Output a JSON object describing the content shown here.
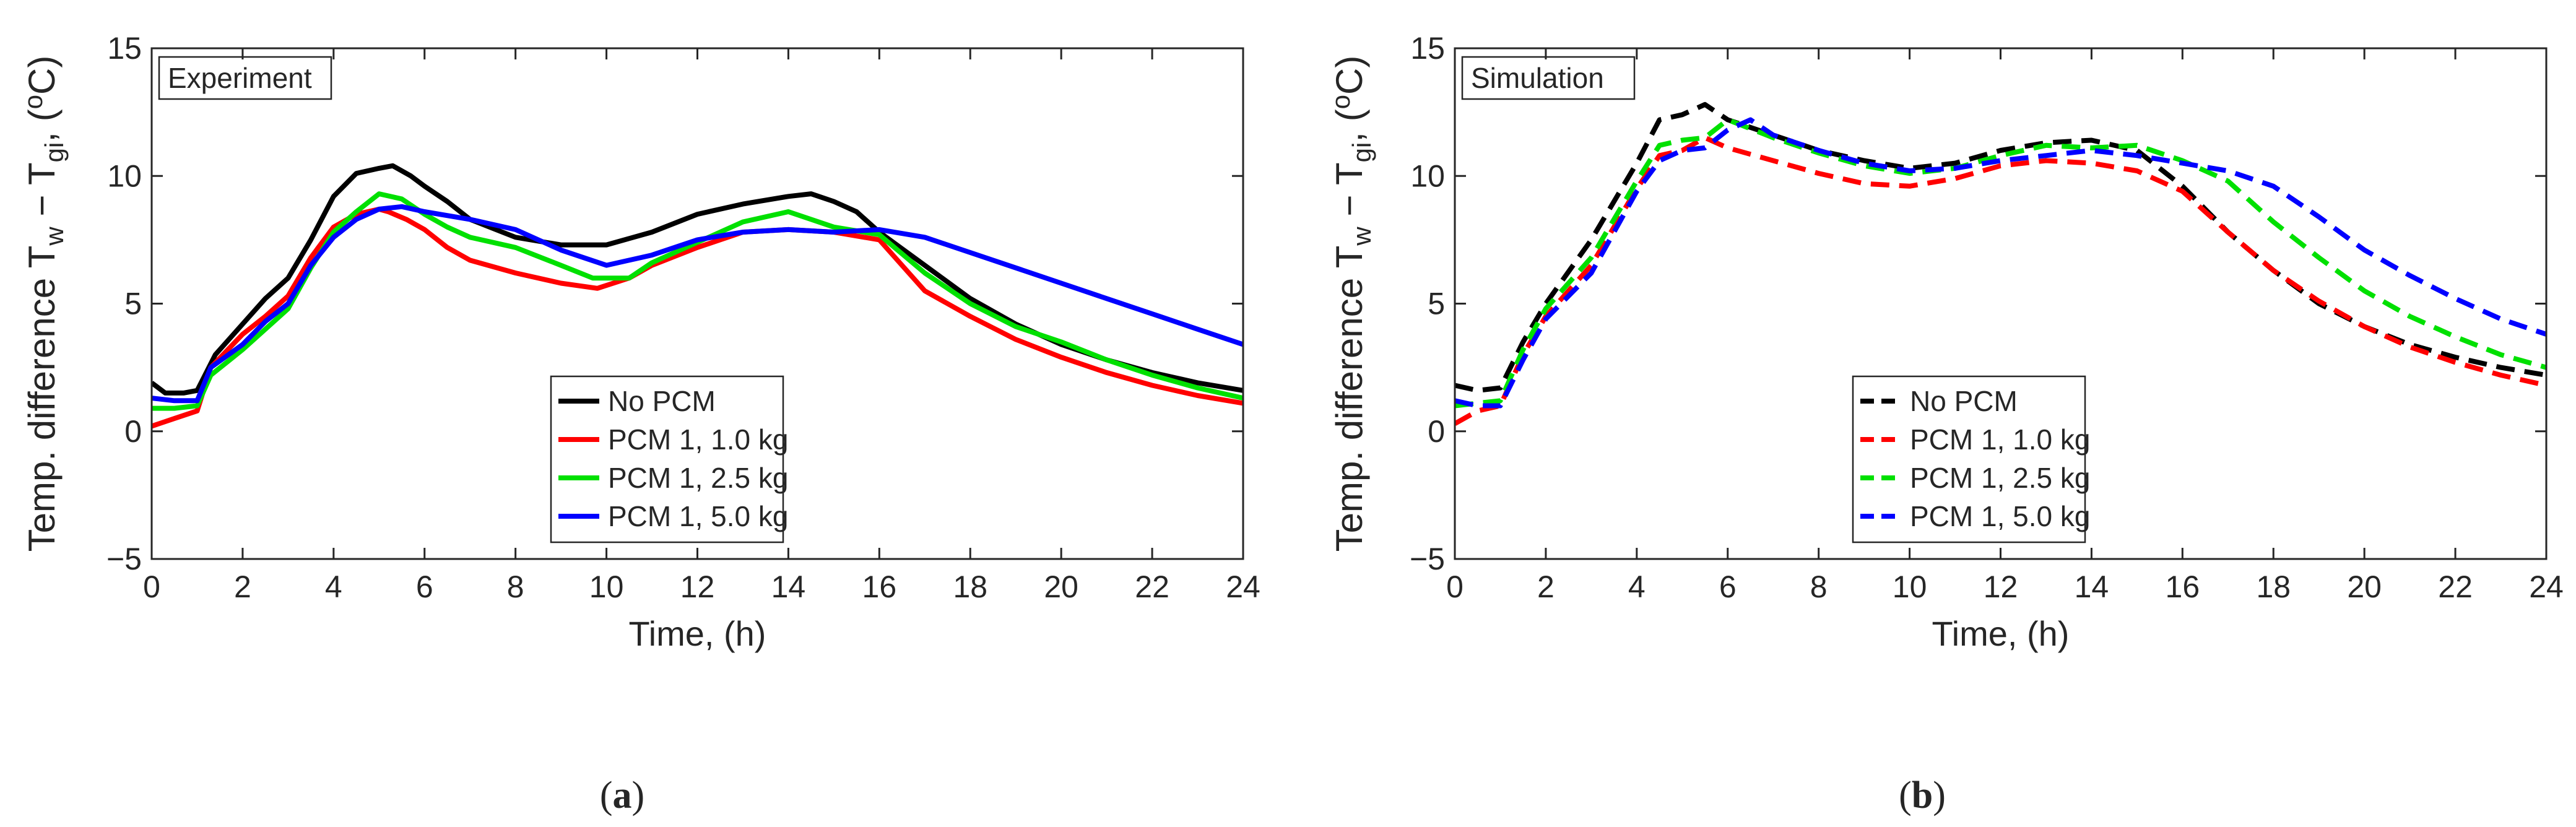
{
  "figure": {
    "panels": [
      {
        "label_open": "(",
        "label_letter": "a",
        "label_close": ")"
      },
      {
        "label_open": "(",
        "label_letter": "b",
        "label_close": ")"
      }
    ]
  },
  "chart_data": [
    {
      "type": "line",
      "title": "",
      "box_label": "Experiment",
      "xlabel": "Time, (h)",
      "ylabel_parts": {
        "main": "Temp. difference T",
        "sub1": "w",
        "minus": " − T",
        "sub2": "gi",
        "comma": ", (",
        "deg": "o",
        "unit": "C)"
      },
      "xlim": [
        0,
        24
      ],
      "ylim": [
        -5,
        15
      ],
      "xticks": [
        0,
        2,
        4,
        6,
        8,
        10,
        12,
        14,
        16,
        18,
        20,
        22,
        24
      ],
      "yticks": [
        -5,
        0,
        5,
        10,
        15
      ],
      "ytick_labels": [
        "−5",
        "0",
        "5",
        "10",
        "15"
      ],
      "grid": false,
      "legend_position": "lower-center",
      "line_style": "solid",
      "series": [
        {
          "name": "No PCM",
          "color": "#000000",
          "x": [
            0,
            0.3,
            0.7,
            1.0,
            1.4,
            2.0,
            2.5,
            3.0,
            3.5,
            4.0,
            4.5,
            5.0,
            5.3,
            5.7,
            6.0,
            6.5,
            7.0,
            8.0,
            9.0,
            10.0,
            11.0,
            12.0,
            13.0,
            14.0,
            14.5,
            15.0,
            15.5,
            16.0,
            17.0,
            18.0,
            19.0,
            20.0,
            21.0,
            22.0,
            23.0,
            24.0
          ],
          "y": [
            1.9,
            1.5,
            1.5,
            1.6,
            3.0,
            4.2,
            5.2,
            6.0,
            7.5,
            9.2,
            10.1,
            10.3,
            10.4,
            10.0,
            9.6,
            9.0,
            8.3,
            7.6,
            7.3,
            7.3,
            7.8,
            8.5,
            8.9,
            9.2,
            9.3,
            9.0,
            8.6,
            7.8,
            6.5,
            5.2,
            4.2,
            3.4,
            2.8,
            2.3,
            1.9,
            1.6
          ]
        },
        {
          "name": "PCM 1, 1.0 kg",
          "color": "#ff0000",
          "x": [
            0,
            0.5,
            1.0,
            1.3,
            2.0,
            2.5,
            3.0,
            3.5,
            4.0,
            4.5,
            5.0,
            5.2,
            5.6,
            6.0,
            6.5,
            7.0,
            8.0,
            9.0,
            9.8,
            10.5,
            11.0,
            12.0,
            13.0,
            14.0,
            15.0,
            16.0,
            17.0,
            18.0,
            19.0,
            20.0,
            21.0,
            22.0,
            23.0,
            24.0
          ],
          "y": [
            0.2,
            0.5,
            0.8,
            2.5,
            3.8,
            4.5,
            5.3,
            6.8,
            8.0,
            8.5,
            8.7,
            8.6,
            8.3,
            7.9,
            7.2,
            6.7,
            6.2,
            5.8,
            5.6,
            6.0,
            6.5,
            7.2,
            7.8,
            7.9,
            7.8,
            7.5,
            5.5,
            4.5,
            3.6,
            2.9,
            2.3,
            1.8,
            1.4,
            1.1
          ]
        },
        {
          "name": "PCM 1, 2.5 kg",
          "color": "#00e000",
          "x": [
            0,
            0.5,
            1.0,
            1.3,
            2.0,
            2.5,
            3.0,
            3.5,
            4.0,
            4.5,
            5.0,
            5.5,
            6.0,
            6.5,
            7.0,
            8.0,
            9.0,
            9.7,
            10.5,
            11.0,
            12.0,
            13.0,
            14.0,
            15.0,
            16.0,
            17.0,
            18.0,
            19.0,
            20.0,
            21.0,
            22.0,
            23.0,
            24.0
          ],
          "y": [
            0.9,
            0.9,
            1.0,
            2.2,
            3.2,
            4.0,
            4.8,
            6.4,
            7.8,
            8.6,
            9.3,
            9.1,
            8.5,
            8.0,
            7.6,
            7.2,
            6.5,
            6.0,
            6.0,
            6.6,
            7.4,
            8.2,
            8.6,
            8.0,
            7.7,
            6.2,
            5.0,
            4.1,
            3.5,
            2.8,
            2.2,
            1.7,
            1.3
          ]
        },
        {
          "name": "PCM 1, 5.0 kg",
          "color": "#0000ff",
          "x": [
            0,
            0.5,
            1.0,
            1.3,
            2.0,
            2.5,
            3.0,
            3.5,
            4.0,
            4.5,
            5.0,
            5.5,
            6.0,
            7.0,
            8.0,
            9.0,
            10.0,
            11.0,
            12.0,
            13.0,
            14.0,
            15.0,
            16.0,
            17.0,
            18.0,
            19.0,
            20.0,
            21.0,
            22.0,
            23.0,
            24.0
          ],
          "y": [
            1.3,
            1.2,
            1.2,
            2.5,
            3.4,
            4.3,
            5.0,
            6.5,
            7.6,
            8.3,
            8.7,
            8.8,
            8.6,
            8.3,
            7.9,
            7.1,
            6.5,
            6.9,
            7.5,
            7.8,
            7.9,
            7.8,
            7.9,
            7.6,
            7.0,
            6.4,
            5.8,
            5.2,
            4.6,
            4.0,
            3.4
          ]
        }
      ]
    },
    {
      "type": "line",
      "title": "",
      "box_label": "Simulation",
      "xlabel": "Time, (h)",
      "ylabel_parts": {
        "main": "Temp. difference T",
        "sub1": "w",
        "minus": " − T",
        "sub2": "gi",
        "comma": ", (",
        "deg": "o",
        "unit": "C)"
      },
      "xlim": [
        0,
        24
      ],
      "ylim": [
        -5,
        15
      ],
      "xticks": [
        0,
        2,
        4,
        6,
        8,
        10,
        12,
        14,
        16,
        18,
        20,
        22,
        24
      ],
      "yticks": [
        -5,
        0,
        5,
        10,
        15
      ],
      "ytick_labels": [
        "−5",
        "0",
        "5",
        "10",
        "15"
      ],
      "grid": false,
      "legend_position": "lower-center",
      "line_style": "dashed",
      "series": [
        {
          "name": "No PCM",
          "color": "#000000",
          "x": [
            0,
            0.5,
            1.0,
            1.5,
            2.0,
            3.0,
            4.0,
            4.5,
            5.0,
            5.5,
            6.0,
            7.0,
            8.0,
            9.0,
            10.0,
            11.0,
            12.0,
            13.0,
            14.0,
            15.0,
            16.0,
            17.0,
            18.0,
            19.0,
            20.0,
            21.0,
            22.0,
            23.0,
            24.0
          ],
          "y": [
            1.8,
            1.6,
            1.7,
            3.5,
            5.0,
            7.5,
            10.5,
            12.2,
            12.4,
            12.8,
            12.2,
            11.6,
            11.0,
            10.6,
            10.3,
            10.5,
            11.0,
            11.3,
            11.4,
            11.0,
            9.6,
            7.8,
            6.3,
            5.0,
            4.1,
            3.4,
            2.9,
            2.5,
            2.2
          ]
        },
        {
          "name": "PCM 1, 1.0 kg",
          "color": "#ff0000",
          "x": [
            0,
            0.5,
            1.0,
            1.5,
            2.0,
            3.0,
            4.0,
            4.5,
            5.0,
            5.5,
            6.0,
            7.0,
            8.0,
            9.0,
            10.0,
            11.0,
            12.0,
            13.0,
            14.0,
            15.0,
            16.0,
            17.0,
            18.0,
            19.0,
            20.0,
            21.0,
            22.0,
            23.0,
            24.0
          ],
          "y": [
            0.3,
            0.8,
            1.0,
            3.0,
            4.5,
            6.5,
            9.5,
            10.8,
            11.0,
            11.5,
            11.1,
            10.6,
            10.1,
            9.7,
            9.6,
            9.9,
            10.4,
            10.6,
            10.5,
            10.2,
            9.4,
            7.8,
            6.3,
            5.1,
            4.1,
            3.3,
            2.7,
            2.2,
            1.8
          ]
        },
        {
          "name": "PCM 1, 2.5 kg",
          "color": "#00e000",
          "x": [
            0,
            0.5,
            1.0,
            1.5,
            2.0,
            3.0,
            4.0,
            4.5,
            5.0,
            5.5,
            6.0,
            7.0,
            8.0,
            9.0,
            10.0,
            11.0,
            12.0,
            13.0,
            14.0,
            15.0,
            16.0,
            17.0,
            18.0,
            19.0,
            20.0,
            21.0,
            22.0,
            23.0,
            24.0
          ],
          "y": [
            1.0,
            1.1,
            1.2,
            3.2,
            4.8,
            6.8,
            9.8,
            11.2,
            11.4,
            11.5,
            12.2,
            11.5,
            10.9,
            10.4,
            10.1,
            10.3,
            10.8,
            11.2,
            11.1,
            11.2,
            10.6,
            9.8,
            8.2,
            6.8,
            5.5,
            4.5,
            3.7,
            3.0,
            2.5
          ]
        },
        {
          "name": "PCM 1, 5.0 kg",
          "color": "#0000ff",
          "x": [
            0,
            0.5,
            1.0,
            1.5,
            2.0,
            3.0,
            4.0,
            4.5,
            5.0,
            5.5,
            6.0,
            6.5,
            7.0,
            8.0,
            9.0,
            10.0,
            11.0,
            12.0,
            13.0,
            14.0,
            15.0,
            16.0,
            17.0,
            18.0,
            19.0,
            20.0,
            21.0,
            22.0,
            23.0,
            24.0
          ],
          "y": [
            1.2,
            1.0,
            1.0,
            2.8,
            4.4,
            6.2,
            9.4,
            10.6,
            11.0,
            11.1,
            11.8,
            12.2,
            11.6,
            11.0,
            10.5,
            10.2,
            10.3,
            10.6,
            10.8,
            11.0,
            10.8,
            10.5,
            10.2,
            9.6,
            8.4,
            7.1,
            6.1,
            5.2,
            4.4,
            3.8
          ]
        }
      ]
    }
  ]
}
